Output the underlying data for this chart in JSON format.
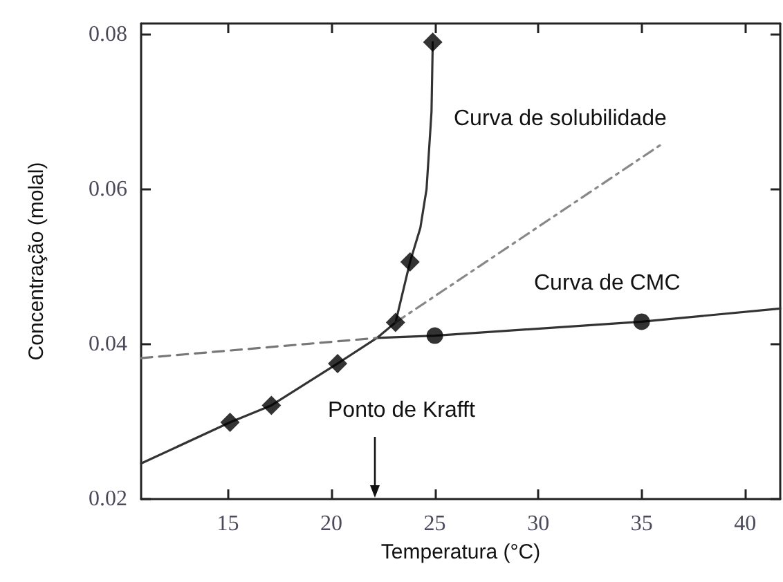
{
  "chart_data": {
    "type": "line",
    "xlabel": "Temperatura (°C)",
    "ylabel": "Concentração (molal)",
    "xlim": [
      10.8,
      41.7
    ],
    "ylim": [
      0.02,
      0.0814
    ],
    "xticks": [
      15,
      20,
      25,
      30,
      35,
      40
    ],
    "yticks": [
      0.02,
      0.04,
      0.06,
      0.08
    ],
    "grid": false,
    "series": [
      {
        "color": "#333333",
        "line_style": "solid",
        "marker": "none",
        "x": [
          10.8,
          15.1,
          17.1,
          20.3,
          22.2,
          23.1,
          23.8,
          24.3,
          24.6,
          24.84,
          24.9
        ],
        "values": [
          0.0246,
          0.0299,
          0.0321,
          0.0375,
          0.0408,
          0.0428,
          0.0506,
          0.055,
          0.06,
          0.07,
          0.079
        ]
      },
      {
        "color": "#888888",
        "line_style": "dashdot",
        "marker": "none",
        "x": [
          23.1,
          35.9
        ],
        "values": [
          0.0428,
          0.0657
        ]
      },
      {
        "color": "#333333",
        "line_style": "solid",
        "marker": "none",
        "x": [
          22.2,
          25.0,
          35.0,
          41.7
        ],
        "values": [
          0.0408,
          0.0411,
          0.0429,
          0.0446
        ]
      },
      {
        "color": "#777777",
        "line_style": "dashed",
        "marker": "none",
        "x": [
          10.8,
          22.2
        ],
        "values": [
          0.0382,
          0.0408
        ]
      },
      {
        "type": "scatter",
        "color": "#000000",
        "marker": "diamond",
        "x": [
          15.1,
          17.1,
          20.3,
          23.1,
          23.8,
          24.9
        ],
        "values": [
          0.0299,
          0.0321,
          0.0375,
          0.0428,
          0.0506,
          0.079
        ]
      },
      {
        "type": "scatter",
        "color": "#000000",
        "marker": "circle",
        "x": [
          25.0,
          35.0
        ],
        "values": [
          0.0411,
          0.0429
        ]
      }
    ],
    "annotations": [
      "Curva de solubilidade",
      "Curva de CMC",
      "Ponto de Krafft"
    ]
  }
}
